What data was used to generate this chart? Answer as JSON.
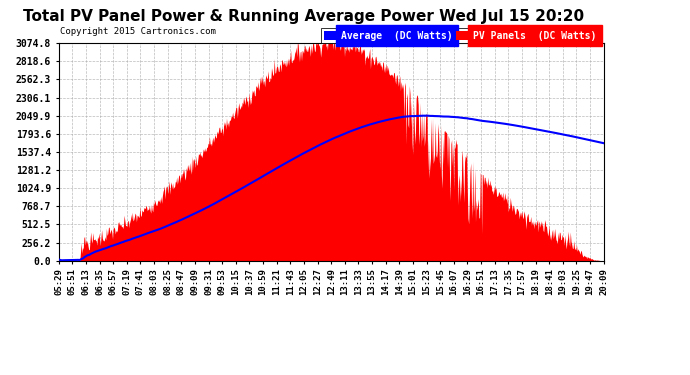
{
  "title": "Total PV Panel Power & Running Average Power Wed Jul 15 20:20",
  "copyright": "Copyright 2015 Cartronics.com",
  "legend_avg": "Average  (DC Watts)",
  "legend_pv": "PV Panels  (DC Watts)",
  "yticks": [
    0.0,
    256.2,
    512.5,
    768.7,
    1024.9,
    1281.2,
    1537.4,
    1793.6,
    2049.9,
    2306.1,
    2562.3,
    2818.6,
    3074.8
  ],
  "ymax": 3074.8,
  "ymin": 0.0,
  "bg_color": "#ffffff",
  "grid_color": "#aaaaaa",
  "pv_fill_color": "#ff0000",
  "avg_line_color": "#0000ff",
  "title_fontsize": 11,
  "xtick_labels": [
    "05:29",
    "05:51",
    "06:13",
    "06:35",
    "06:57",
    "07:19",
    "07:41",
    "08:03",
    "08:25",
    "08:47",
    "09:09",
    "09:31",
    "09:53",
    "10:15",
    "10:37",
    "10:59",
    "11:21",
    "11:43",
    "12:05",
    "12:27",
    "12:49",
    "13:11",
    "13:33",
    "13:55",
    "14:17",
    "14:39",
    "15:01",
    "15:23",
    "15:45",
    "16:07",
    "16:29",
    "16:51",
    "17:13",
    "17:35",
    "17:57",
    "18:19",
    "18:41",
    "19:03",
    "19:25",
    "19:47",
    "20:09"
  ],
  "num_points": 800
}
